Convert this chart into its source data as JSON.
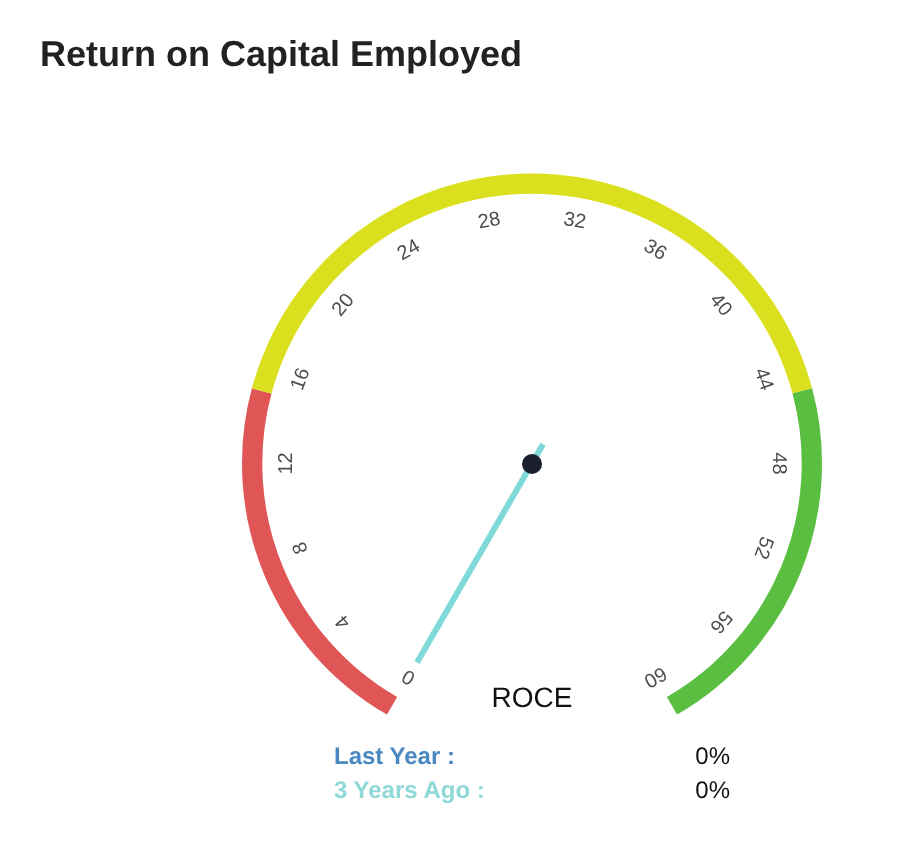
{
  "chart_data": {
    "type": "donut",
    "title": "Return on Capital Employed",
    "xlabel": "ROCE",
    "categories": [
      null,
      null,
      null
    ],
    "values": [
      25,
      50,
      25
    ],
    "colors": [
      "#e05656",
      "#dbe01e",
      "#5abf40"
    ],
    "needle": null,
    "annotations": [
      "0",
      "4",
      "8",
      "12",
      "16",
      "20",
      "24",
      "28",
      "32",
      "36",
      "40",
      "44",
      "48",
      "52",
      "56",
      "60",
      "Last Year :",
      "0%",
      "3 Years Ago :",
      "0%"
    ]
  }
}
